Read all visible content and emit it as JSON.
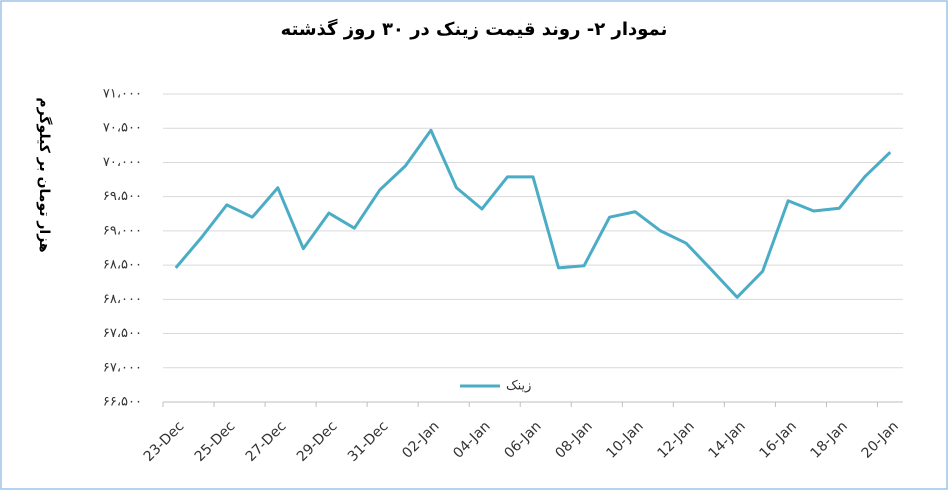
{
  "chart_data": {
    "type": "line",
    "title": "نمودار ۲- روند قیمت زینک در ۳۰ روز گذشته",
    "y_label": "هزار تومان بر کیلوگرم",
    "categories": [
      "23-Dec",
      null,
      "25-Dec",
      null,
      "27-Dec",
      null,
      "29-Dec",
      null,
      "31-Dec",
      null,
      "02-Jan",
      null,
      "04-Jan",
      null,
      "06-Jan",
      null,
      "08-Jan",
      null,
      "10-Jan",
      null,
      "12-Jan",
      null,
      "14-Jan",
      null,
      "16-Jan",
      null,
      "18-Jan",
      null,
      "20-Jan"
    ],
    "series": [
      {
        "name": "زینک",
        "color": "#4bacc6",
        "values": [
          68460,
          68900,
          69380,
          69200,
          69630,
          68740,
          69260,
          69040,
          69600,
          69950,
          70470,
          69630,
          69320,
          69790,
          69790,
          68460,
          68490,
          69200,
          69280,
          69000,
          68820,
          68430,
          68030,
          68410,
          69440,
          69290,
          69330,
          69790,
          70150
        ]
      }
    ],
    "ylim": [
      66500,
      71000
    ],
    "yticks": [
      {
        "value": 66500,
        "label": "۶۶،۵۰۰"
      },
      {
        "value": 67000,
        "label": "۶۷،۰۰۰"
      },
      {
        "value": 67500,
        "label": "۶۷،۵۰۰"
      },
      {
        "value": 68000,
        "label": "۶۸،۰۰۰"
      },
      {
        "value": 68500,
        "label": "۶۸،۵۰۰"
      },
      {
        "value": 69000,
        "label": "۶۹،۰۰۰"
      },
      {
        "value": 69500,
        "label": "۶۹،۵۰۰"
      },
      {
        "value": 70000,
        "label": "۷۰،۰۰۰"
      },
      {
        "value": 70500,
        "label": "۷۰،۵۰۰"
      },
      {
        "value": 71000,
        "label": "۷۱،۰۰۰"
      }
    ],
    "grid": true,
    "legend": "bottom"
  }
}
